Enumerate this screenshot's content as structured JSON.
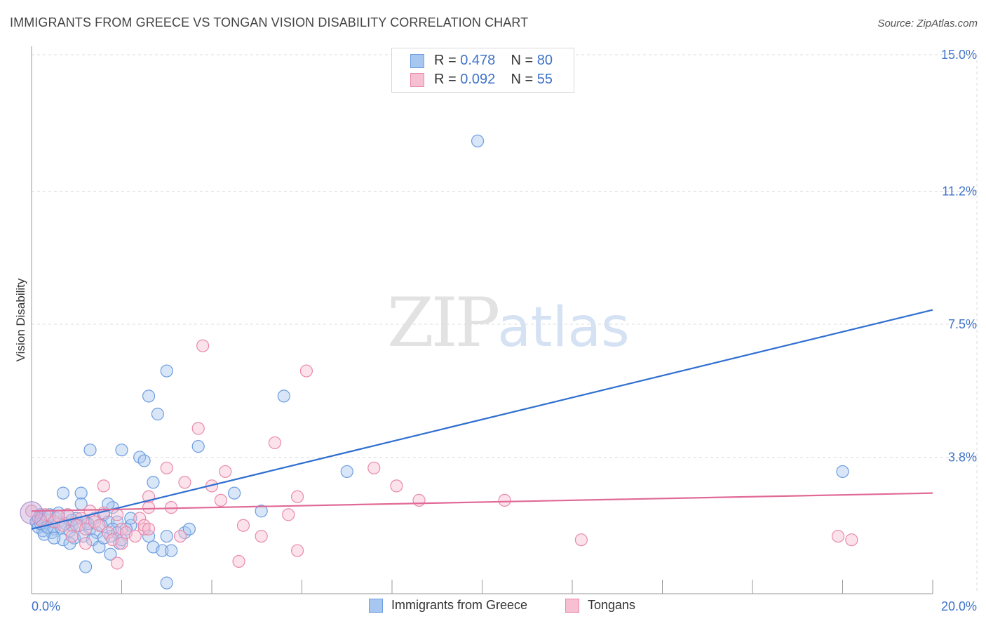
{
  "title": "IMMIGRANTS FROM GREECE VS TONGAN VISION DISABILITY CORRELATION CHART",
  "source": "Source: ZipAtlas.com",
  "watermark": {
    "zip": "ZIP",
    "atlas": "atlas"
  },
  "legend": [
    {
      "r_label": "R =",
      "r_value": "0.478",
      "n_label": "N =",
      "n_value": "80",
      "color": "#a8c7f0",
      "border": "#6d9de0"
    },
    {
      "r_label": "R =",
      "r_value": "0.092",
      "n_label": "N =",
      "n_value": "55",
      "color": "#f7bfd2",
      "border": "#e98aac"
    }
  ],
  "chart_data": {
    "type": "scatter",
    "title": "IMMIGRANTS FROM GREECE VS TONGAN VISION DISABILITY CORRELATION CHART",
    "xlabel": "",
    "ylabel": "Vision Disability",
    "xlim": [
      0,
      20
    ],
    "ylim": [
      0,
      15
    ],
    "x_tick_labels": [
      "0.0%",
      "20.0%"
    ],
    "y_ticks": [
      3.8,
      7.5,
      11.2,
      15.0
    ],
    "y_tick_labels": [
      "3.8%",
      "7.5%",
      "11.2%",
      "15.0%"
    ],
    "grid": true,
    "legend_position": "top-center",
    "series": [
      {
        "name": "Immigrants from Greece",
        "color": "#6d9de0",
        "fill": "#a8c7f0",
        "trend": {
          "x": [
            0,
            20
          ],
          "y": [
            1.8,
            7.9
          ],
          "color": "#2f6fd0"
        },
        "points": [
          [
            9.9,
            12.6
          ],
          [
            3.0,
            6.2
          ],
          [
            2.6,
            5.5
          ],
          [
            2.8,
            5.0
          ],
          [
            5.6,
            5.5
          ],
          [
            3.7,
            4.1
          ],
          [
            1.3,
            4.0
          ],
          [
            2.0,
            4.0
          ],
          [
            2.4,
            3.8
          ],
          [
            2.5,
            3.7
          ],
          [
            7.0,
            3.4
          ],
          [
            18.0,
            3.4
          ],
          [
            2.7,
            3.1
          ],
          [
            0.7,
            2.8
          ],
          [
            1.1,
            2.8
          ],
          [
            4.5,
            2.8
          ],
          [
            1.1,
            2.5
          ],
          [
            1.8,
            2.4
          ],
          [
            1.7,
            2.5
          ],
          [
            5.1,
            2.3
          ],
          [
            0.2,
            2.2
          ],
          [
            0.4,
            2.2
          ],
          [
            0.6,
            2.0
          ],
          [
            0.8,
            2.2
          ],
          [
            1.0,
            2.1
          ],
          [
            1.2,
            2.0
          ],
          [
            1.4,
            2.1
          ],
          [
            1.6,
            2.2
          ],
          [
            1.7,
            2.0
          ],
          [
            1.9,
            2.0
          ],
          [
            0.3,
            1.9
          ],
          [
            0.5,
            1.8
          ],
          [
            0.9,
            1.9
          ],
          [
            1.3,
            1.8
          ],
          [
            1.8,
            1.8
          ],
          [
            2.2,
            1.9
          ],
          [
            0.1,
            2.0
          ],
          [
            0.35,
            2.05
          ],
          [
            0.55,
            2.1
          ],
          [
            0.75,
            1.95
          ],
          [
            0.25,
            1.75
          ],
          [
            0.45,
            1.7
          ],
          [
            0.65,
            1.85
          ],
          [
            0.85,
            1.75
          ],
          [
            1.05,
            1.9
          ],
          [
            1.25,
            1.95
          ],
          [
            1.45,
            1.7
          ],
          [
            1.55,
            1.9
          ],
          [
            2.1,
            1.8
          ],
          [
            0.15,
            1.85
          ],
          [
            0.28,
            1.65
          ],
          [
            0.95,
            1.55
          ],
          [
            1.15,
            1.6
          ],
          [
            1.35,
            1.5
          ],
          [
            1.75,
            1.6
          ],
          [
            1.95,
            1.4
          ],
          [
            2.2,
            2.1
          ],
          [
            2.6,
            1.6
          ],
          [
            3.0,
            1.6
          ],
          [
            3.4,
            1.7
          ],
          [
            3.5,
            1.8
          ],
          [
            0.7,
            1.5
          ],
          [
            0.85,
            1.4
          ],
          [
            1.5,
            1.3
          ],
          [
            1.75,
            1.1
          ],
          [
            2.7,
            1.3
          ],
          [
            2.9,
            1.2
          ],
          [
            3.1,
            1.2
          ],
          [
            1.2,
            0.75
          ],
          [
            3.0,
            0.3
          ],
          [
            0.4,
            2.15
          ],
          [
            0.6,
            2.25
          ],
          [
            0.2,
            1.95
          ],
          [
            0.5,
            1.55
          ],
          [
            1.6,
            1.55
          ],
          [
            1.9,
            1.7
          ],
          [
            2.0,
            1.5
          ],
          [
            0.9,
            2.05
          ],
          [
            0.15,
            2.1
          ],
          [
            0.35,
            1.85
          ]
        ]
      },
      {
        "name": "Tongans",
        "color": "#e98aac",
        "fill": "#f7bfd2",
        "trend": {
          "x": [
            0,
            20
          ],
          "y": [
            2.3,
            2.8
          ],
          "color": "#e06a96"
        },
        "points": [
          [
            3.8,
            6.9
          ],
          [
            6.1,
            6.2
          ],
          [
            3.7,
            4.6
          ],
          [
            5.4,
            4.2
          ],
          [
            3.0,
            3.5
          ],
          [
            4.3,
            3.4
          ],
          [
            7.6,
            3.5
          ],
          [
            1.6,
            3.0
          ],
          [
            3.4,
            3.1
          ],
          [
            4.0,
            3.0
          ],
          [
            8.1,
            3.0
          ],
          [
            2.6,
            2.7
          ],
          [
            4.2,
            2.6
          ],
          [
            5.9,
            2.7
          ],
          [
            8.6,
            2.6
          ],
          [
            10.5,
            2.6
          ],
          [
            3.1,
            2.4
          ],
          [
            1.3,
            2.3
          ],
          [
            2.6,
            2.4
          ],
          [
            0.0,
            2.3
          ],
          [
            0.3,
            2.2
          ],
          [
            0.8,
            2.2
          ],
          [
            1.1,
            2.1
          ],
          [
            1.4,
            2.0
          ],
          [
            1.9,
            2.2
          ],
          [
            2.4,
            2.1
          ],
          [
            5.7,
            2.2
          ],
          [
            0.5,
            2.0
          ],
          [
            1.0,
            1.9
          ],
          [
            1.5,
            1.9
          ],
          [
            2.0,
            1.8
          ],
          [
            2.5,
            1.8
          ],
          [
            2.5,
            1.9
          ],
          [
            4.7,
            1.9
          ],
          [
            0.7,
            1.9
          ],
          [
            1.2,
            1.8
          ],
          [
            1.7,
            1.7
          ],
          [
            2.1,
            1.7
          ],
          [
            2.6,
            1.8
          ],
          [
            5.1,
            1.6
          ],
          [
            0.9,
            1.6
          ],
          [
            1.8,
            1.5
          ],
          [
            2.3,
            1.6
          ],
          [
            3.3,
            1.6
          ],
          [
            12.2,
            1.5
          ],
          [
            17.9,
            1.6
          ],
          [
            18.2,
            1.5
          ],
          [
            1.2,
            1.4
          ],
          [
            2.0,
            1.4
          ],
          [
            5.9,
            1.2
          ],
          [
            1.9,
            0.85
          ],
          [
            4.6,
            0.9
          ],
          [
            0.2,
            2.05
          ],
          [
            0.6,
            2.15
          ],
          [
            1.6,
            2.25
          ]
        ]
      }
    ]
  },
  "bottom_legend": [
    {
      "label": "Immigrants from Greece",
      "color": "#a8c7f0",
      "border": "#6d9de0"
    },
    {
      "label": "Tongans",
      "color": "#f7bfd2",
      "border": "#e98aac"
    }
  ]
}
